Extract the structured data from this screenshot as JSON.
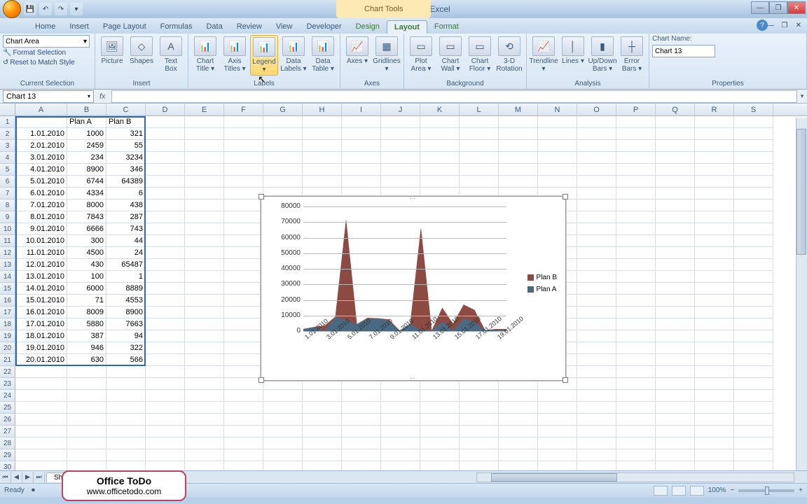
{
  "app": {
    "title": "E07L50 - Microsoft Excel",
    "context_tools": "Chart Tools"
  },
  "tabs": [
    "Home",
    "Insert",
    "Page Layout",
    "Formulas",
    "Data",
    "Review",
    "View",
    "Developer"
  ],
  "ctx_tabs": [
    "Design",
    "Layout",
    "Format"
  ],
  "active_tab": "Layout",
  "ribbon": {
    "selection_box": "Chart Area",
    "format_selection": "Format Selection",
    "reset_match": "Reset to Match Style",
    "groups": {
      "current_selection": "Current Selection",
      "insert": "Insert",
      "labels": "Labels",
      "axes": "Axes",
      "background": "Background",
      "analysis": "Analysis",
      "properties": "Properties"
    },
    "btns": {
      "picture": "Picture",
      "shapes": "Shapes",
      "textbox": "Text\nBox",
      "charttitle": "Chart\nTitle ▾",
      "axistitles": "Axis\nTitles ▾",
      "legend": "Legend\n▾",
      "datalabels": "Data\nLabels ▾",
      "datatable": "Data\nTable ▾",
      "axes": "Axes\n▾",
      "gridlines": "Gridlines\n▾",
      "plotarea": "Plot\nArea ▾",
      "chartwall": "Chart\nWall ▾",
      "chartfloor": "Chart\nFloor ▾",
      "rotation": "3-D\nRotation",
      "trendline": "Trendline\n▾",
      "lines": "Lines\n▾",
      "updown": "Up/Down\nBars ▾",
      "errorbars": "Error\nBars ▾"
    },
    "chart_name_label": "Chart Name:",
    "chart_name_value": "Chart 13"
  },
  "namebox": "Chart 13",
  "columns": [
    {
      "l": "A",
      "w": 74
    },
    {
      "l": "B",
      "w": 56
    },
    {
      "l": "C",
      "w": 56
    },
    {
      "l": "D",
      "w": 56
    },
    {
      "l": "E",
      "w": 56
    },
    {
      "l": "F",
      "w": 56
    },
    {
      "l": "G",
      "w": 56
    },
    {
      "l": "H",
      "w": 56
    },
    {
      "l": "I",
      "w": 56
    },
    {
      "l": "J",
      "w": 56
    },
    {
      "l": "K",
      "w": 56
    },
    {
      "l": "L",
      "w": 56
    },
    {
      "l": "M",
      "w": 56
    },
    {
      "l": "N",
      "w": 56
    },
    {
      "l": "O",
      "w": 56
    },
    {
      "l": "P",
      "w": 56
    },
    {
      "l": "Q",
      "w": 56
    },
    {
      "l": "R",
      "w": 56
    },
    {
      "l": "S",
      "w": 56
    }
  ],
  "data": {
    "headers": [
      "",
      "Plan A",
      "Plan B"
    ],
    "rows": [
      [
        "1.01.2010",
        "1000",
        "321"
      ],
      [
        "2.01.2010",
        "2459",
        "55"
      ],
      [
        "3.01.2010",
        "234",
        "3234"
      ],
      [
        "4.01.2010",
        "8900",
        "346"
      ],
      [
        "5.01.2010",
        "6744",
        "64389"
      ],
      [
        "6.01.2010",
        "4334",
        "6"
      ],
      [
        "7.01.2010",
        "8000",
        "438"
      ],
      [
        "8.01.2010",
        "7843",
        "287"
      ],
      [
        "9.01.2010",
        "6666",
        "743"
      ],
      [
        "10.01.2010",
        "300",
        "44"
      ],
      [
        "11.01.2010",
        "4500",
        "24"
      ],
      [
        "12.01.2010",
        "430",
        "65487"
      ],
      [
        "13.01.2010",
        "100",
        "1"
      ],
      [
        "14.01.2010",
        "6000",
        "8889"
      ],
      [
        "15.01.2010",
        "71",
        "4553"
      ],
      [
        "16.01.2010",
        "8009",
        "8900"
      ],
      [
        "17.01.2010",
        "5880",
        "7663"
      ],
      [
        "18.01.2010",
        "387",
        "94"
      ],
      [
        "19.01.2010",
        "946",
        "322"
      ],
      [
        "20.01.2010",
        "630",
        "566"
      ]
    ]
  },
  "empty_rows": 9,
  "chart": {
    "type": "area-stacked",
    "ymax": 80000,
    "ytick": 10000,
    "yticks": [
      "0",
      "10000",
      "20000",
      "30000",
      "40000",
      "50000",
      "60000",
      "70000",
      "80000"
    ],
    "xlabels": [
      "1.01.2010",
      "3.01.2010",
      "5.01.2010",
      "7.01.2010",
      "9.01.2010",
      "11.01.2010",
      "13.01.2010",
      "15.01.2010",
      "17.01.2010",
      "19.01.2010"
    ],
    "series": [
      {
        "name": "Plan A",
        "color": "#4a6a84",
        "values": [
          1000,
          2459,
          234,
          8900,
          6744,
          4334,
          8000,
          7843,
          6666,
          300,
          4500,
          430,
          100,
          6000,
          71,
          8009,
          5880,
          387,
          946,
          630
        ]
      },
      {
        "name": "Plan B",
        "color": "#8c4a42",
        "values": [
          321,
          55,
          3234,
          346,
          64389,
          6,
          438,
          287,
          743,
          44,
          24,
          65487,
          1,
          8889,
          4553,
          8900,
          7663,
          94,
          322,
          566
        ]
      }
    ],
    "legend": [
      {
        "label": "Plan B",
        "color": "#8c4a42"
      },
      {
        "label": "Plan A",
        "color": "#4a6a84"
      }
    ],
    "background_color": "#ffffff",
    "grid_color": "#b8b8b8"
  },
  "sheet_tab": "She",
  "status": {
    "ready": "Ready",
    "zoom": "100%"
  },
  "watermark": {
    "t": "Office ToDo",
    "u": "www.officetodo.com"
  }
}
